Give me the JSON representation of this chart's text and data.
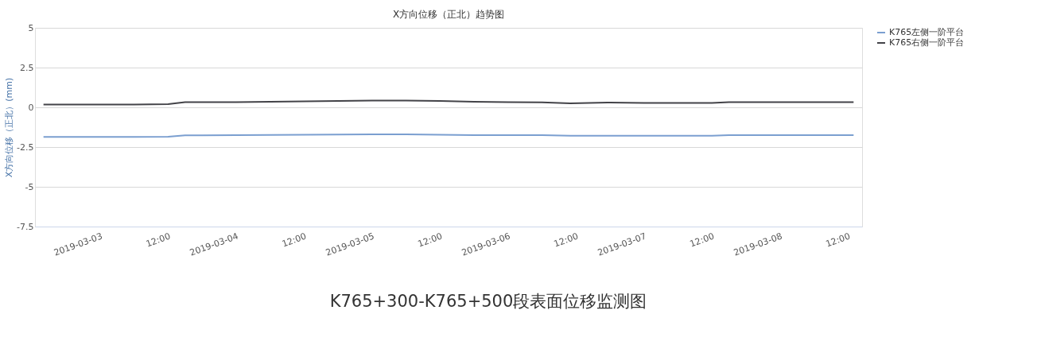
{
  "chart_data": {
    "type": "line",
    "title": "X方向位移（正北）趋势图",
    "ylabel": "X方向位移（正北）(mm)",
    "ylim": [
      -7.5,
      5
    ],
    "yticks": [
      5,
      2.5,
      0,
      -2.5,
      -5,
      -7.5
    ],
    "xlim": [
      "2019-03-02T12:30",
      "2019-03-08T14:30"
    ],
    "xticks": [
      {
        "value": "2019-03-03T00:00",
        "label": "2019-03-03"
      },
      {
        "value": "2019-03-03T12:00",
        "label": "12:00"
      },
      {
        "value": "2019-03-04T00:00",
        "label": "2019-03-04"
      },
      {
        "value": "2019-03-04T12:00",
        "label": "12:00"
      },
      {
        "value": "2019-03-05T00:00",
        "label": "2019-03-05"
      },
      {
        "value": "2019-03-05T12:00",
        "label": "12:00"
      },
      {
        "value": "2019-03-06T00:00",
        "label": "2019-03-06"
      },
      {
        "value": "2019-03-06T12:00",
        "label": "12:00"
      },
      {
        "value": "2019-03-07T00:00",
        "label": "2019-03-07"
      },
      {
        "value": "2019-03-07T12:00",
        "label": "12:00"
      },
      {
        "value": "2019-03-08T00:00",
        "label": "2019-03-08"
      },
      {
        "value": "2019-03-08T12:00",
        "label": "12:00"
      }
    ],
    "x": [
      "2019-03-02T14:00",
      "2019-03-02T18:00",
      "2019-03-03T00:00",
      "2019-03-03T06:00",
      "2019-03-03T12:00",
      "2019-03-03T15:00",
      "2019-03-03T18:00",
      "2019-03-04T00:00",
      "2019-03-04T06:00",
      "2019-03-04T12:00",
      "2019-03-04T18:00",
      "2019-03-05T00:00",
      "2019-03-05T06:00",
      "2019-03-05T12:00",
      "2019-03-05T18:00",
      "2019-03-06T00:00",
      "2019-03-06T06:00",
      "2019-03-06T11:00",
      "2019-03-06T18:00",
      "2019-03-07T00:00",
      "2019-03-07T06:00",
      "2019-03-07T12:00",
      "2019-03-07T15:00",
      "2019-03-07T18:00",
      "2019-03-08T00:00",
      "2019-03-08T06:00",
      "2019-03-08T13:00"
    ],
    "series": [
      {
        "name": "K765左侧一阶平台",
        "color": "#7b9fd0",
        "values": [
          -1.86,
          -1.86,
          -1.86,
          -1.86,
          -1.85,
          -1.76,
          -1.76,
          -1.75,
          -1.74,
          -1.73,
          -1.71,
          -1.7,
          -1.7,
          -1.72,
          -1.75,
          -1.75,
          -1.75,
          -1.79,
          -1.79,
          -1.79,
          -1.79,
          -1.79,
          -1.75,
          -1.75,
          -1.75,
          -1.75,
          -1.75
        ]
      },
      {
        "name": "K765右侧一阶平台",
        "color": "#434348",
        "values": [
          0.18,
          0.18,
          0.18,
          0.18,
          0.2,
          0.32,
          0.32,
          0.33,
          0.35,
          0.38,
          0.4,
          0.42,
          0.42,
          0.4,
          0.35,
          0.32,
          0.31,
          0.25,
          0.3,
          0.27,
          0.27,
          0.27,
          0.33,
          0.33,
          0.33,
          0.33,
          0.33
        ]
      }
    ],
    "grid": "y",
    "legend": "right",
    "marker": "none",
    "line_style": "solid",
    "annotations": [
      "K765+300-K765+500段表面位移监测图"
    ]
  }
}
